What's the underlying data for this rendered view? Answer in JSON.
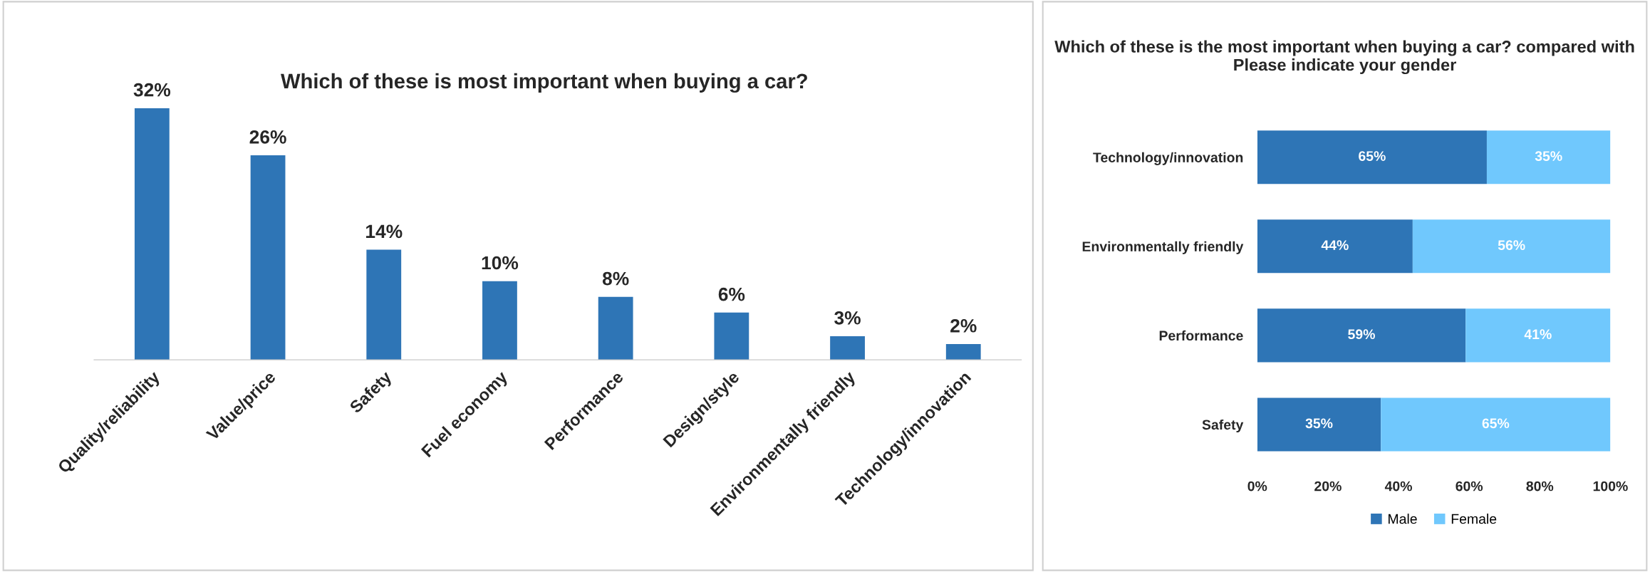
{
  "chart_data": [
    {
      "type": "bar",
      "title": "Which of these is most important when buying a car?",
      "categories": [
        "Quality/reliability",
        "Value/price",
        "Safety",
        "Fuel economy",
        "Performance",
        "Design/style",
        "Environmentally friendly",
        "Technology/innovation"
      ],
      "values": [
        32,
        26,
        14,
        10,
        8,
        6,
        3,
        2
      ],
      "color": "#2e75b6",
      "value_labels": [
        "32%",
        "26%",
        "14%",
        "10%",
        "8%",
        "6%",
        "3%",
        "2%"
      ],
      "grid": false,
      "legend": false
    },
    {
      "type": "bar",
      "orientation": "horizontal",
      "stacked": true,
      "title": "Which of these is the most important when buying a car? compared with Please indicate your gender",
      "categories": [
        "Technology/innovation",
        "Environmentally friendly",
        "Performance",
        "Safety"
      ],
      "series": [
        {
          "name": "Male",
          "color": "#2e75b6",
          "values": [
            65,
            44,
            59,
            35
          ],
          "value_labels": [
            "65%",
            "44%",
            "59%",
            "35%"
          ]
        },
        {
          "name": "Female",
          "color": "#70c8fd",
          "values": [
            35,
            56,
            41,
            65
          ],
          "value_labels": [
            "35%",
            "56%",
            "41%",
            "65%"
          ]
        }
      ],
      "xlim": [
        0,
        100
      ],
      "xticks": [
        {
          "value": 0,
          "label": "0%"
        },
        {
          "value": 20,
          "label": "20%"
        },
        {
          "value": 40,
          "label": "40%"
        },
        {
          "value": 60,
          "label": "60%"
        },
        {
          "value": 80,
          "label": "80%"
        },
        {
          "value": 100,
          "label": "100%"
        }
      ],
      "grid": false,
      "legend": "bottom"
    }
  ]
}
